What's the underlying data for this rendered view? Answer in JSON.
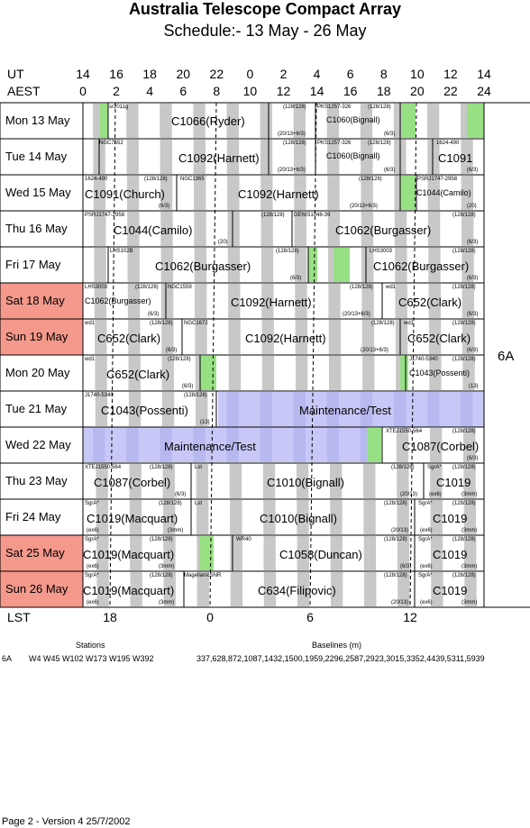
{
  "header": {
    "title": "Australia Telescope Compact Array",
    "subtitle": "Schedule:- 13 May - 26 May"
  },
  "axes": {
    "ut_label": "UT",
    "aest_label": "AEST",
    "lst_label": "LST",
    "ut_ticks": [
      "14",
      "16",
      "18",
      "20",
      "22",
      "0",
      "2",
      "4",
      "6",
      "8",
      "10",
      "12",
      "14"
    ],
    "aest_ticks": [
      "0",
      "2",
      "4",
      "6",
      "8",
      "10",
      "12",
      "14",
      "16",
      "18",
      "20",
      "22",
      "24"
    ],
    "lst_ticks": [
      "18",
      "0",
      "6",
      "12"
    ]
  },
  "config_label": "6A",
  "colors": {
    "weekend": "#f4998c",
    "green": "#98e084",
    "grey": "#c8c8c8",
    "maint": "#c8c8f8"
  },
  "days": [
    {
      "label": "Mon  13 May",
      "weekend": false,
      "texts": [
        {
          "t": "sr2011g",
          "x": 121,
          "y": 2,
          "c": "tiny"
        },
        {
          "t": "C1066(Ryder)",
          "x": 190,
          "y": 14,
          "c": "big"
        },
        {
          "t": "(128/128)",
          "x": 314,
          "y": 2,
          "c": "tiny"
        },
        {
          "t": "PKS1257-326",
          "x": 352,
          "y": 2,
          "c": "tiny"
        },
        {
          "t": "(128/128)",
          "x": 408,
          "y": 2,
          "c": "tiny"
        },
        {
          "t": "C1060(Bignall)",
          "x": 362,
          "y": 14,
          "c": "small"
        },
        {
          "t": "(20/13+6/3)",
          "x": 308,
          "y": 32,
          "c": "tiny"
        },
        {
          "t": "(6/3)",
          "x": 426,
          "y": 32,
          "c": "tiny"
        }
      ]
    },
    {
      "label": "Tue  14 May",
      "weekend": false,
      "texts": [
        {
          "t": "NGC7552",
          "x": 110,
          "y": 2,
          "c": "tiny"
        },
        {
          "t": "C1092(Harnett)",
          "x": 198,
          "y": 15,
          "c": "big"
        },
        {
          "t": "(128/128)",
          "x": 314,
          "y": 2,
          "c": "tiny"
        },
        {
          "t": "PKS1257-326",
          "x": 352,
          "y": 2,
          "c": "tiny"
        },
        {
          "t": "(128/128)",
          "x": 408,
          "y": 2,
          "c": "tiny"
        },
        {
          "t": "C1060(Bignall)",
          "x": 362,
          "y": 14,
          "c": "small"
        },
        {
          "t": "1624-490",
          "x": 484,
          "y": 2,
          "c": "tiny"
        },
        {
          "t": "C1091",
          "x": 486,
          "y": 15,
          "c": "big"
        },
        {
          "t": "(20/13+6/3)",
          "x": 308,
          "y": 32,
          "c": "tiny"
        },
        {
          "t": "(6/3)",
          "x": 426,
          "y": 32,
          "c": "tiny"
        },
        {
          "t": "(6/3)",
          "x": 518,
          "y": 32,
          "c": "tiny"
        }
      ]
    },
    {
      "label": "Wed  15 May",
      "weekend": false,
      "texts": [
        {
          "t": "1624-490",
          "x": 94,
          "y": 2,
          "c": "tiny"
        },
        {
          "t": "(128/128)",
          "x": 160,
          "y": 2,
          "c": "tiny"
        },
        {
          "t": "NGC1365",
          "x": 200,
          "y": 2,
          "c": "tiny"
        },
        {
          "t": "C1091(Church)",
          "x": 94,
          "y": 15,
          "c": "big"
        },
        {
          "t": "C1092(Harnett)",
          "x": 264,
          "y": 15,
          "c": "big"
        },
        {
          "t": "(128/128)",
          "x": 398,
          "y": 2,
          "c": "tiny"
        },
        {
          "t": "PSRJ1747-2958",
          "x": 463,
          "y": 2,
          "c": "tiny"
        },
        {
          "t": "C1044(Camilo)",
          "x": 462,
          "y": 15,
          "c": "small"
        },
        {
          "t": "(6/3)",
          "x": 176,
          "y": 32,
          "c": "tiny"
        },
        {
          "t": "(20/13+6/3)",
          "x": 388,
          "y": 32,
          "c": "tiny"
        },
        {
          "t": "(20)",
          "x": 518,
          "y": 32,
          "c": "tiny"
        }
      ]
    },
    {
      "label": "Thu  16 May",
      "weekend": false,
      "texts": [
        {
          "t": "PSRJ1747-2958",
          "x": 94,
          "y": 2,
          "c": "tiny"
        },
        {
          "t": "(128/128)",
          "x": 290,
          "y": 2,
          "c": "tiny"
        },
        {
          "t": "DENIS1048-39",
          "x": 326,
          "y": 2,
          "c": "tiny"
        },
        {
          "t": "(128/128)",
          "x": 502,
          "y": 2,
          "c": "tiny"
        },
        {
          "t": "C1044(Camilo)",
          "x": 126,
          "y": 15,
          "c": "big"
        },
        {
          "t": "C1062(Burgasser)",
          "x": 372,
          "y": 15,
          "c": "big"
        },
        {
          "t": "(20)",
          "x": 242,
          "y": 32,
          "c": "tiny"
        },
        {
          "t": "(6/3)",
          "x": 518,
          "y": 32,
          "c": "tiny"
        }
      ]
    },
    {
      "label": "Fri   17 May",
      "weekend": false,
      "texts": [
        {
          "t": "LHS102B",
          "x": 122,
          "y": 2,
          "c": "tiny"
        },
        {
          "t": "(128/128)",
          "x": 306,
          "y": 2,
          "c": "tiny"
        },
        {
          "t": "LHS3003",
          "x": 410,
          "y": 2,
          "c": "tiny"
        },
        {
          "t": "(128/128)",
          "x": 502,
          "y": 2,
          "c": "tiny"
        },
        {
          "t": "C1062(Burgasser)",
          "x": 172,
          "y": 15,
          "c": "big"
        },
        {
          "t": "C1062(Burgasser)",
          "x": 414,
          "y": 15,
          "c": "big"
        },
        {
          "t": "(6/3)",
          "x": 322,
          "y": 32,
          "c": "tiny"
        },
        {
          "t": "(6/3)",
          "x": 518,
          "y": 32,
          "c": "tiny"
        }
      ]
    },
    {
      "label": "Sat   18 May",
      "weekend": true,
      "texts": [
        {
          "t": "LHS3003",
          "x": 94,
          "y": 2,
          "c": "tiny"
        },
        {
          "t": "(128/128)",
          "x": 150,
          "y": 2,
          "c": "tiny"
        },
        {
          "t": "NGC1559",
          "x": 186,
          "y": 2,
          "c": "tiny"
        },
        {
          "t": "(128/128)",
          "x": 388,
          "y": 2,
          "c": "tiny"
        },
        {
          "t": "wd1",
          "x": 428,
          "y": 2,
          "c": "tiny"
        },
        {
          "t": "(128/128)",
          "x": 502,
          "y": 2,
          "c": "tiny"
        },
        {
          "t": "C1062(Burgasser)",
          "x": 94,
          "y": 15,
          "c": "small"
        },
        {
          "t": "C1092(Harnett)",
          "x": 256,
          "y": 15,
          "c": "big"
        },
        {
          "t": "C652(Clark)",
          "x": 442,
          "y": 15,
          "c": "big"
        },
        {
          "t": "(6/3)",
          "x": 164,
          "y": 32,
          "c": "tiny"
        },
        {
          "t": "(20/13+6/3)",
          "x": 380,
          "y": 32,
          "c": "tiny"
        },
        {
          "t": "(6/3)",
          "x": 518,
          "y": 32,
          "c": "tiny"
        }
      ]
    },
    {
      "label": "Sun  19 May",
      "weekend": true,
      "texts": [
        {
          "t": "wd1",
          "x": 94,
          "y": 2,
          "c": "tiny"
        },
        {
          "t": "(128/128)",
          "x": 166,
          "y": 2,
          "c": "tiny"
        },
        {
          "t": "NGC1672",
          "x": 204,
          "y": 2,
          "c": "tiny"
        },
        {
          "t": "(128/128)",
          "x": 412,
          "y": 2,
          "c": "tiny"
        },
        {
          "t": "wd1",
          "x": 448,
          "y": 2,
          "c": "tiny"
        },
        {
          "t": "(128/128)",
          "x": 502,
          "y": 2,
          "c": "tiny"
        },
        {
          "t": "C652(Clark)",
          "x": 108,
          "y": 15,
          "c": "big"
        },
        {
          "t": "C1092(Harnett)",
          "x": 272,
          "y": 15,
          "c": "big"
        },
        {
          "t": "C652(Clark)",
          "x": 452,
          "y": 15,
          "c": "big"
        },
        {
          "t": "(6/3)",
          "x": 184,
          "y": 32,
          "c": "tiny"
        },
        {
          "t": "(20/13+6/3)",
          "x": 400,
          "y": 32,
          "c": "tiny"
        },
        {
          "t": "(6/3)",
          "x": 518,
          "y": 32,
          "c": "tiny"
        }
      ]
    },
    {
      "label": "Mon  20 May",
      "weekend": false,
      "texts": [
        {
          "t": "wd1",
          "x": 94,
          "y": 2,
          "c": "tiny"
        },
        {
          "t": "(128/128)",
          "x": 186,
          "y": 2,
          "c": "tiny"
        },
        {
          "t": "J1740-5340",
          "x": 454,
          "y": 2,
          "c": "tiny"
        },
        {
          "t": "(128/128)",
          "x": 502,
          "y": 2,
          "c": "tiny"
        },
        {
          "t": "C652(Clark)",
          "x": 118,
          "y": 15,
          "c": "big"
        },
        {
          "t": "C1043(Possenti)",
          "x": 454,
          "y": 15,
          "c": "small"
        },
        {
          "t": "(6/3)",
          "x": 202,
          "y": 32,
          "c": "tiny"
        },
        {
          "t": "(13)",
          "x": 520,
          "y": 32,
          "c": "tiny"
        }
      ]
    },
    {
      "label": "Tue  21 May",
      "weekend": false,
      "texts": [
        {
          "t": "J1740-5340",
          "x": 94,
          "y": 2,
          "c": "tiny"
        },
        {
          "t": "(128/128)",
          "x": 204,
          "y": 2,
          "c": "tiny"
        },
        {
          "t": "C1043(Possenti)",
          "x": 112,
          "y": 15,
          "c": "big"
        },
        {
          "t": "Maintenance/Test",
          "x": 332,
          "y": 15,
          "c": "big"
        },
        {
          "t": "(13)",
          "x": 222,
          "y": 32,
          "c": "tiny"
        }
      ]
    },
    {
      "label": "Wed  22 May",
      "weekend": false,
      "texts": [
        {
          "t": "XTEJ1550-564",
          "x": 428,
          "y": 2,
          "c": "tiny"
        },
        {
          "t": "(128/128)",
          "x": 502,
          "y": 2,
          "c": "tiny"
        },
        {
          "t": "Maintenance/Test",
          "x": 182,
          "y": 15,
          "c": "big"
        },
        {
          "t": "C1087(Corbel)",
          "x": 446,
          "y": 15,
          "c": "big"
        },
        {
          "t": "(6/3)",
          "x": 518,
          "y": 32,
          "c": "tiny"
        }
      ]
    },
    {
      "label": "Thu  23 May",
      "weekend": false,
      "texts": [
        {
          "t": "XTEJ1550-564",
          "x": 94,
          "y": 2,
          "c": "tiny"
        },
        {
          "t": "(128/128)",
          "x": 166,
          "y": 2,
          "c": "tiny"
        },
        {
          "t": "Lst",
          "x": 216,
          "y": 2,
          "c": "tiny"
        },
        {
          "t": "(128/128)",
          "x": 434,
          "y": 2,
          "c": "tiny"
        },
        {
          "t": "SgrA*",
          "x": 474,
          "y": 2,
          "c": "tiny"
        },
        {
          "t": "(128/128)",
          "x": 502,
          "y": 2,
          "c": "tiny"
        },
        {
          "t": "C1087(Corbel)",
          "x": 104,
          "y": 15,
          "c": "big"
        },
        {
          "t": "C1010(Bignall)",
          "x": 296,
          "y": 15,
          "c": "big"
        },
        {
          "t": "C1019",
          "x": 484,
          "y": 15,
          "c": "big"
        },
        {
          "t": "(6/3)",
          "x": 194,
          "y": 32,
          "c": "tiny"
        },
        {
          "t": "(20/13)",
          "x": 444,
          "y": 32,
          "c": "tiny"
        },
        {
          "t": "(ex6)",
          "x": 476,
          "y": 32,
          "c": "tiny"
        },
        {
          "t": "(3mm)",
          "x": 512,
          "y": 32,
          "c": "tiny"
        }
      ]
    },
    {
      "label": "Fri   24 May",
      "weekend": false,
      "texts": [
        {
          "t": "SgrA*",
          "x": 94,
          "y": 2,
          "c": "tiny"
        },
        {
          "t": "(128/128)",
          "x": 176,
          "y": 2,
          "c": "tiny"
        },
        {
          "t": "Lst",
          "x": 216,
          "y": 2,
          "c": "tiny"
        },
        {
          "t": "(128/128)",
          "x": 426,
          "y": 2,
          "c": "tiny"
        },
        {
          "t": "SgrA*",
          "x": 464,
          "y": 2,
          "c": "tiny"
        },
        {
          "t": "(128/128)",
          "x": 502,
          "y": 2,
          "c": "tiny"
        },
        {
          "t": "C1019(Macquart)",
          "x": 96,
          "y": 15,
          "c": "big"
        },
        {
          "t": "C1010(Bignall)",
          "x": 288,
          "y": 15,
          "c": "big"
        },
        {
          "t": "C1019",
          "x": 480,
          "y": 15,
          "c": "big"
        },
        {
          "t": "(ex6)",
          "x": 96,
          "y": 32,
          "c": "tiny"
        },
        {
          "t": "(3mm)",
          "x": 186,
          "y": 32,
          "c": "tiny"
        },
        {
          "t": "(20/13)",
          "x": 434,
          "y": 32,
          "c": "tiny"
        },
        {
          "t": "(ex6)",
          "x": 466,
          "y": 32,
          "c": "tiny"
        },
        {
          "t": "(3mm)",
          "x": 512,
          "y": 32,
          "c": "tiny"
        }
      ]
    },
    {
      "label": "Sat   25 May",
      "weekend": true,
      "texts": [
        {
          "t": "SgrA*",
          "x": 94,
          "y": 2,
          "c": "tiny"
        },
        {
          "t": "(128/128)",
          "x": 166,
          "y": 2,
          "c": "tiny"
        },
        {
          "t": "WR40",
          "x": 262,
          "y": 2,
          "c": "tiny"
        },
        {
          "t": "(128/128)",
          "x": 426,
          "y": 2,
          "c": "tiny"
        },
        {
          "t": "SgrA*",
          "x": 464,
          "y": 2,
          "c": "tiny"
        },
        {
          "t": "(128/128)",
          "x": 502,
          "y": 2,
          "c": "tiny"
        },
        {
          "t": "C1019(Macquart)",
          "x": 92,
          "y": 15,
          "c": "big"
        },
        {
          "t": "C1058(Duncan)",
          "x": 310,
          "y": 15,
          "c": "big"
        },
        {
          "t": "C1019",
          "x": 480,
          "y": 15,
          "c": "big"
        },
        {
          "t": "(ex6)",
          "x": 96,
          "y": 32,
          "c": "tiny"
        },
        {
          "t": "(3mm)",
          "x": 176,
          "y": 32,
          "c": "tiny"
        },
        {
          "t": "(6/3)",
          "x": 444,
          "y": 32,
          "c": "tiny"
        },
        {
          "t": "(ex6)",
          "x": 466,
          "y": 32,
          "c": "tiny"
        },
        {
          "t": "(3mm)",
          "x": 512,
          "y": 32,
          "c": "tiny"
        }
      ]
    },
    {
      "label": "Sun  26 May",
      "weekend": true,
      "texts": [
        {
          "t": "SgrA*",
          "x": 94,
          "y": 2,
          "c": "tiny"
        },
        {
          "t": "(128/128)",
          "x": 166,
          "y": 2,
          "c": "tiny"
        },
        {
          "t": "MagellanicSNR",
          "x": 204,
          "y": 2,
          "c": "tiny"
        },
        {
          "t": "(128/128)",
          "x": 426,
          "y": 2,
          "c": "tiny"
        },
        {
          "t": "SgrA*",
          "x": 464,
          "y": 2,
          "c": "tiny"
        },
        {
          "t": "(128/128)",
          "x": 502,
          "y": 2,
          "c": "tiny"
        },
        {
          "t": "C1019(Macquart)",
          "x": 92,
          "y": 15,
          "c": "big"
        },
        {
          "t": "C634(Filipovic)",
          "x": 286,
          "y": 15,
          "c": "big"
        },
        {
          "t": "C1019",
          "x": 480,
          "y": 15,
          "c": "big"
        },
        {
          "t": "(ex6)",
          "x": 96,
          "y": 32,
          "c": "tiny"
        },
        {
          "t": "(3mm)",
          "x": 176,
          "y": 32,
          "c": "tiny"
        },
        {
          "t": "(20/13)",
          "x": 434,
          "y": 32,
          "c": "tiny"
        },
        {
          "t": "(ex6)",
          "x": 466,
          "y": 32,
          "c": "tiny"
        },
        {
          "t": "(3mm)",
          "x": 512,
          "y": 32,
          "c": "tiny"
        }
      ]
    }
  ],
  "footer": {
    "stations_title": "Stations",
    "baselines_title": "Baselines (m)",
    "config": "6A",
    "stations": "W4 W45 W102 W173 W195 W392",
    "baselines": "337,628,872,1087,1432,1500,1959,2296,2587,2923,3015,3352,4439,5311,5939",
    "page_info": "Page 2 - Version 4  25/7/2002"
  }
}
